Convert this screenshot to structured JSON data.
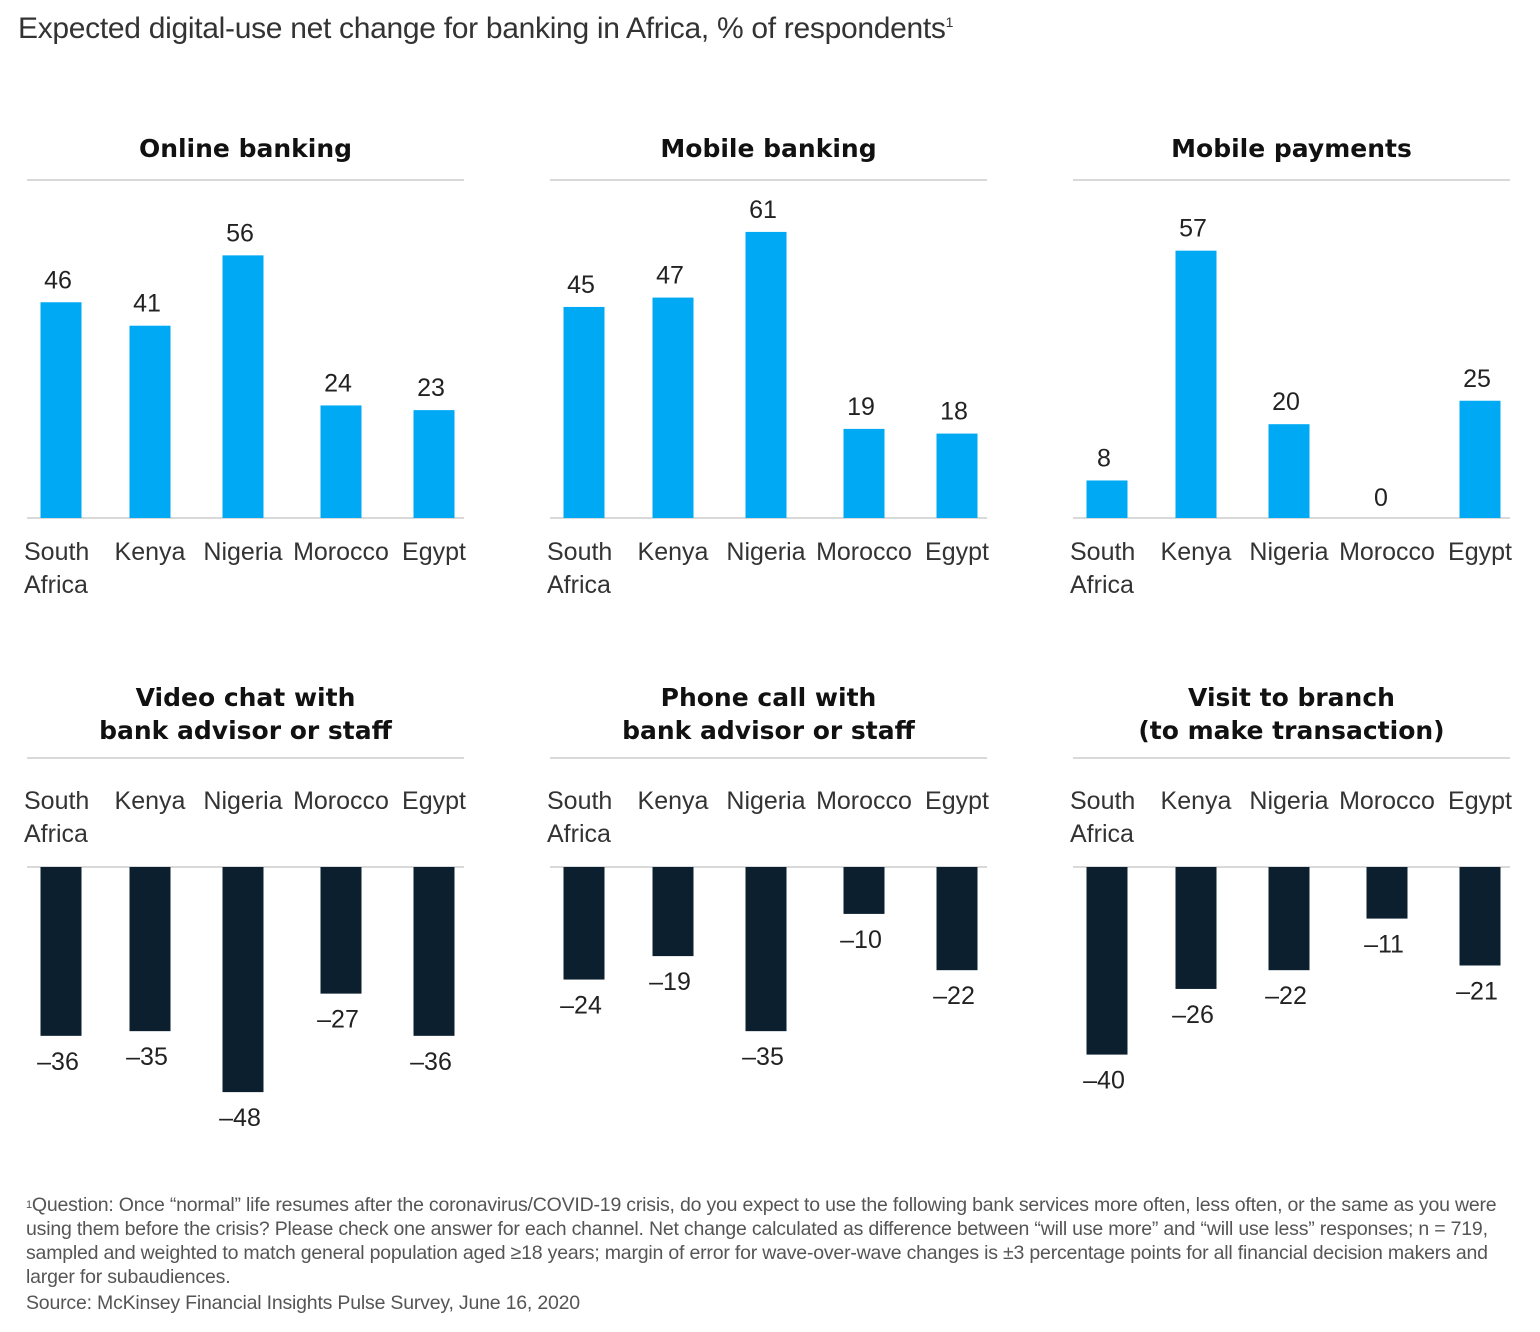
{
  "title": "Expected digital-use net change for banking in Africa, % of respondents",
  "title_footnote_marker": "1",
  "colors": {
    "positive": "#00a9f4",
    "negative": "#0b1f2e",
    "rule": "#d9d9d9"
  },
  "chart_data": [
    {
      "type": "bar",
      "title_lines": [
        "Online banking"
      ],
      "categories": [
        [
          "South",
          "Africa"
        ],
        [
          "Kenya"
        ],
        [
          "Nigeria"
        ],
        [
          "Morocco"
        ],
        [
          "Egypt"
        ]
      ],
      "values": [
        46,
        41,
        56,
        24,
        23
      ],
      "value_labels": [
        "46",
        "41",
        "56",
        "24",
        "23"
      ],
      "xlabel": "",
      "ylabel": "% of respondents"
    },
    {
      "type": "bar",
      "title_lines": [
        "Mobile banking"
      ],
      "categories": [
        [
          "South",
          "Africa"
        ],
        [
          "Kenya"
        ],
        [
          "Nigeria"
        ],
        [
          "Morocco"
        ],
        [
          "Egypt"
        ]
      ],
      "values": [
        45,
        47,
        61,
        19,
        18
      ],
      "value_labels": [
        "45",
        "47",
        "61",
        "19",
        "18"
      ],
      "xlabel": "",
      "ylabel": "% of respondents"
    },
    {
      "type": "bar",
      "title_lines": [
        "Mobile payments"
      ],
      "categories": [
        [
          "South",
          "Africa"
        ],
        [
          "Kenya"
        ],
        [
          "Nigeria"
        ],
        [
          "Morocco"
        ],
        [
          "Egypt"
        ]
      ],
      "values": [
        8,
        57,
        20,
        0,
        25
      ],
      "value_labels": [
        "8",
        "57",
        "20",
        "0",
        "25"
      ],
      "xlabel": "",
      "ylabel": "% of respondents"
    },
    {
      "type": "bar",
      "title_lines": [
        "Video chat with",
        "bank advisor or staff"
      ],
      "categories": [
        [
          "South",
          "Africa"
        ],
        [
          "Kenya"
        ],
        [
          "Nigeria"
        ],
        [
          "Morocco"
        ],
        [
          "Egypt"
        ]
      ],
      "values": [
        -36,
        -35,
        -48,
        -27,
        -36
      ],
      "value_labels": [
        "–36",
        "–35",
        "–48",
        "–27",
        "–36"
      ],
      "xlabel": "",
      "ylabel": "% of respondents"
    },
    {
      "type": "bar",
      "title_lines": [
        "Phone call with",
        "bank advisor or staff"
      ],
      "categories": [
        [
          "South",
          "Africa"
        ],
        [
          "Kenya"
        ],
        [
          "Nigeria"
        ],
        [
          "Morocco"
        ],
        [
          "Egypt"
        ]
      ],
      "values": [
        -24,
        -19,
        -35,
        -10,
        -22
      ],
      "value_labels": [
        "–24",
        "–19",
        "–35",
        "–10",
        "–22"
      ],
      "xlabel": "",
      "ylabel": "% of respondents"
    },
    {
      "type": "bar",
      "title_lines": [
        "Visit to branch",
        "(to make transaction)"
      ],
      "categories": [
        [
          "South",
          "Africa"
        ],
        [
          "Kenya"
        ],
        [
          "Nigeria"
        ],
        [
          "Morocco"
        ],
        [
          "Egypt"
        ]
      ],
      "values": [
        -40,
        -26,
        -22,
        -11,
        -21
      ],
      "value_labels": [
        "–40",
        "–26",
        "–22",
        "–11",
        "–21"
      ],
      "xlabel": "",
      "ylabel": "% of respondents"
    }
  ],
  "footnote": {
    "marker": "1",
    "text": "Question: Once “normal” life resumes after the coronavirus/COVID-19 crisis, do you expect to use the following bank services more often, less often, or the same as you were using them before the crisis? Please check one answer for each channel. Net change calculated as difference between “will use more” and “will use less” responses; n = 719, sampled and weighted to match general population aged ≥18 years; margin of error for wave-over-wave changes is ±3 percentage points for all financial decision makers and larger for subaudiences.",
    "source": "Source: McKinsey Financial Insights Pulse Survey, June 16, 2020"
  }
}
